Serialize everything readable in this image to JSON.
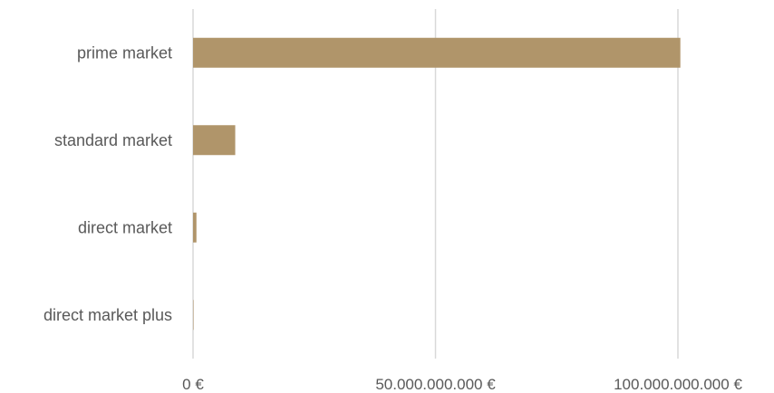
{
  "chart_data": {
    "type": "bar",
    "orientation": "horizontal",
    "categories": [
      "prime market",
      "standard market",
      "direct market",
      "direct market plus"
    ],
    "values": [
      100500000000,
      8700000000,
      700000000,
      50000000
    ],
    "xlim": [
      0,
      100000000000
    ],
    "x_ticks": [
      0,
      50000000000,
      100000000000
    ],
    "x_tick_labels": [
      "0 €",
      "50.000.000.000 €",
      "100.000.000.000 €"
    ],
    "grid": "vertical",
    "bar_color": "#b0956a",
    "legend": "none"
  }
}
